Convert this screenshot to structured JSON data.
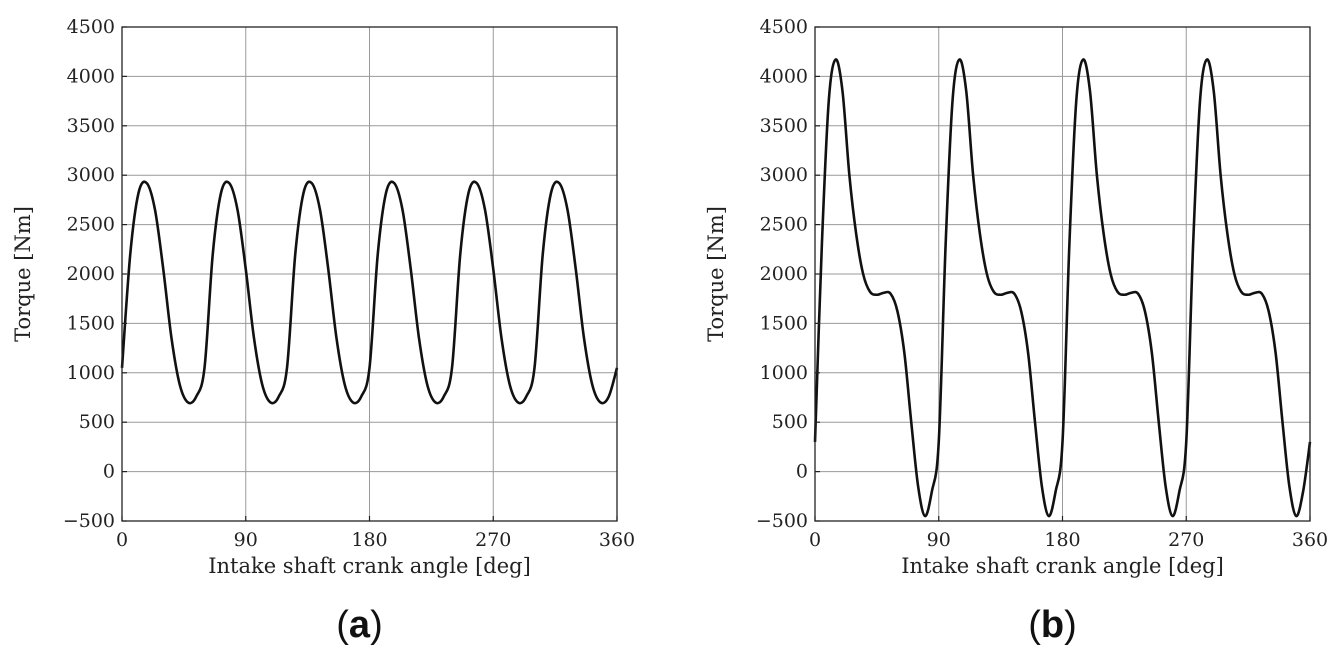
{
  "chart_data": [
    {
      "type": "line",
      "panel_label": "a",
      "xlabel": "Intake shaft crank angle [deg]",
      "ylabel": "Torque [Nm]",
      "xlim": [
        0,
        360
      ],
      "ylim": [
        -500,
        4500
      ],
      "xticks": [
        0,
        90,
        180,
        270,
        360
      ],
      "xtick_labels": [
        "0",
        "90",
        "180",
        "270",
        "360"
      ],
      "yticks": [
        -500,
        0,
        500,
        1000,
        1500,
        2000,
        2500,
        3000,
        3500,
        4000,
        4500
      ],
      "ytick_labels": [
        "−500",
        "0",
        "500",
        "1000",
        "1500",
        "2000",
        "2500",
        "3000",
        "3500",
        "4000",
        "4500"
      ],
      "grid": true,
      "series": [
        {
          "x": [
            0,
            6,
            12,
            18,
            24,
            30,
            36,
            42,
            48,
            54,
            60,
            66,
            72,
            78,
            84,
            90,
            96,
            102,
            108,
            114,
            120,
            126,
            132,
            138,
            144,
            150,
            156,
            162,
            168,
            174,
            180,
            186,
            192,
            198,
            204,
            210,
            216,
            222,
            228,
            234,
            240,
            246,
            252,
            258,
            264,
            270,
            276,
            282,
            288,
            294,
            300,
            306,
            312,
            318,
            324,
            330,
            336,
            342,
            348,
            354,
            360
          ],
          "y": [
            1050,
            2200,
            2820,
            2920,
            2650,
            2050,
            1350,
            880,
            700,
            760,
            1050,
            2200,
            2820,
            2920,
            2650,
            2050,
            1350,
            880,
            700,
            760,
            1050,
            2200,
            2820,
            2920,
            2650,
            2050,
            1350,
            880,
            700,
            760,
            1050,
            2200,
            2820,
            2920,
            2650,
            2050,
            1350,
            880,
            700,
            760,
            1050,
            2200,
            2820,
            2920,
            2650,
            2050,
            1350,
            880,
            700,
            760,
            1050,
            2200,
            2820,
            2920,
            2650,
            2050,
            1350,
            880,
            700,
            760,
            1050
          ]
        }
      ]
    },
    {
      "type": "line",
      "panel_label": "b",
      "xlabel": "Intake shaft crank angle [deg]",
      "ylabel": "Torque [Nm]",
      "xlim": [
        0,
        360
      ],
      "ylim": [
        -500,
        4500
      ],
      "xticks": [
        0,
        90,
        180,
        270,
        360
      ],
      "xtick_labels": [
        "0",
        "90",
        "180",
        "270",
        "360"
      ],
      "yticks": [
        -500,
        0,
        500,
        1000,
        1500,
        2000,
        2500,
        3000,
        3500,
        4000,
        4500
      ],
      "ytick_labels": [
        "−500",
        "0",
        "500",
        "1000",
        "1500",
        "2000",
        "2500",
        "3000",
        "3500",
        "4000",
        "4500"
      ],
      "grid": true,
      "series": [
        {
          "x": [
            0,
            5,
            10,
            15,
            20,
            25,
            30,
            35,
            40,
            45,
            50,
            55,
            60,
            65,
            70,
            75,
            80,
            85,
            90,
            95,
            100,
            105,
            110,
            115,
            120,
            125,
            130,
            135,
            140,
            145,
            150,
            155,
            160,
            165,
            170,
            175,
            180,
            185,
            190,
            195,
            200,
            205,
            210,
            215,
            220,
            225,
            230,
            235,
            240,
            245,
            250,
            255,
            260,
            265,
            270,
            275,
            280,
            285,
            290,
            295,
            300,
            305,
            310,
            315,
            320,
            325,
            330,
            335,
            340,
            345,
            350,
            355,
            360
          ],
          "y": [
            300,
            2300,
            3750,
            4170,
            3850,
            3000,
            2400,
            2000,
            1820,
            1790,
            1810,
            1800,
            1620,
            1200,
            500,
            -150,
            -450,
            -200,
            300,
            2300,
            3750,
            4170,
            3850,
            3000,
            2400,
            2000,
            1820,
            1790,
            1810,
            1800,
            1620,
            1200,
            500,
            -150,
            -450,
            -200,
            300,
            2300,
            3750,
            4170,
            3850,
            3000,
            2400,
            2000,
            1820,
            1790,
            1810,
            1800,
            1620,
            1200,
            500,
            -150,
            -450,
            -200,
            300,
            2300,
            3750,
            4170,
            3850,
            3000,
            2400,
            2000,
            1820,
            1790,
            1810,
            1800,
            1620,
            1200,
            500,
            -150,
            -450,
            -200,
            300
          ]
        }
      ]
    }
  ]
}
